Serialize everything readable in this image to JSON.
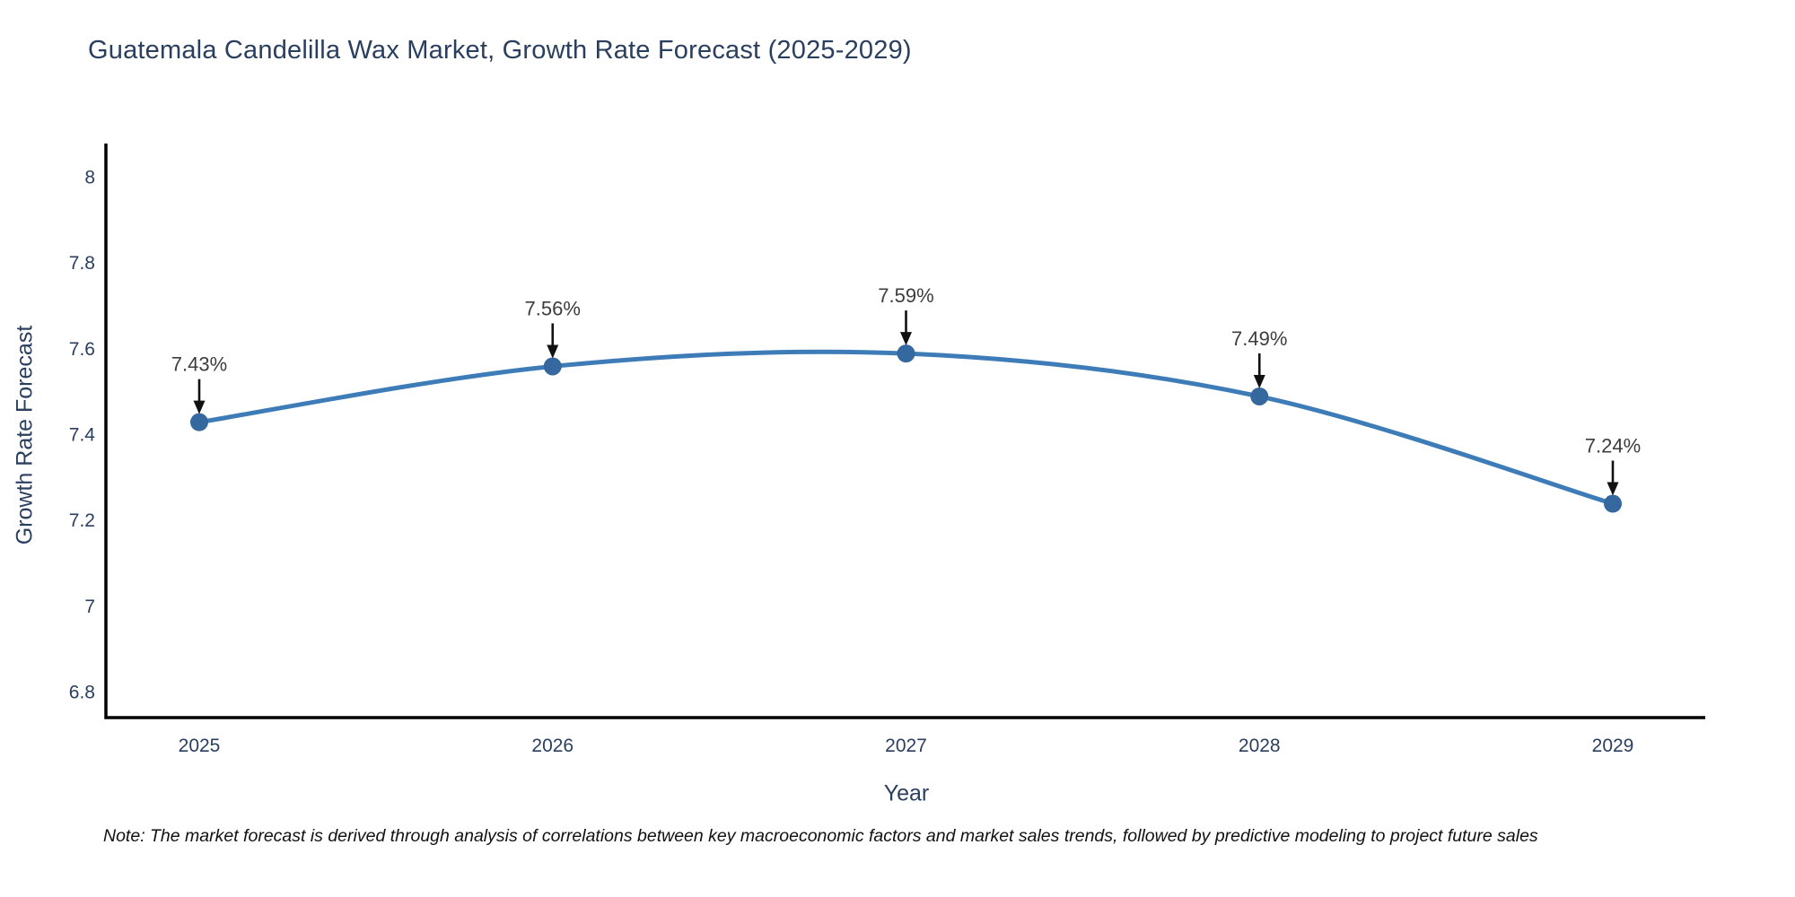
{
  "chart_data": {
    "type": "line",
    "title": "Guatemala Candelilla Wax Market, Growth Rate Forecast (2025-2029)",
    "xlabel": "Year",
    "ylabel": "Growth Rate Forecast",
    "note": "Note: The market forecast is derived through analysis of correlations between key macroeconomic factors and market sales trends, followed by predictive modeling to project future sales",
    "categories": [
      2025,
      2026,
      2027,
      2028,
      2029
    ],
    "values": [
      7.43,
      7.56,
      7.59,
      7.49,
      7.24
    ],
    "point_labels": [
      "7.43%",
      "7.56%",
      "7.59%",
      "7.49%",
      "7.24%"
    ],
    "x_tick_labels": [
      "2025",
      "2026",
      "2027",
      "2028",
      "2029"
    ],
    "y_tick_labels": [
      "6.8",
      "7",
      "7.2",
      "7.4",
      "7.6",
      "7.8",
      "8"
    ],
    "y_tick_values": [
      6.8,
      7.0,
      7.2,
      7.4,
      7.6,
      7.8,
      8.0
    ],
    "ylim": [
      6.74,
      8.08
    ],
    "grid": false,
    "legend": "none",
    "line_shape": "spline",
    "colors": {
      "line": "#3E7CB8",
      "marker": "#35689E",
      "annotation_text": "#3D3D3D",
      "arrow": "#111111",
      "axis": "#000000",
      "tick_text": "#2A3F5F",
      "title_text": "#2A3F5F",
      "note_text": "#111111",
      "background": "#FFFFFF"
    }
  }
}
